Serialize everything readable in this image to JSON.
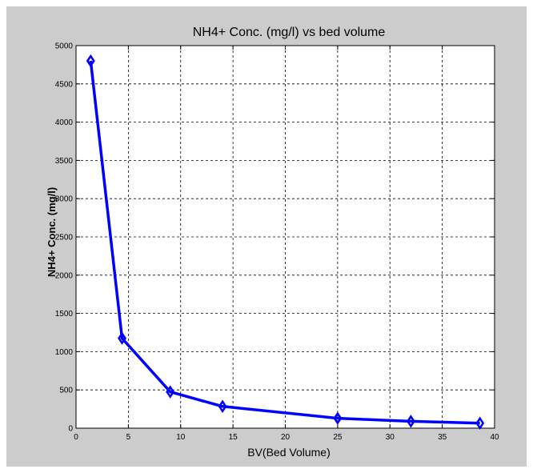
{
  "chart_data": {
    "type": "line",
    "title": "NH4+ Conc. (mg/l) vs bed volume",
    "xlabel": "BV(Bed Volume)",
    "ylabel": "NH4+ Conc. (mg/l)",
    "xlim": [
      0,
      40
    ],
    "ylim": [
      0,
      5000
    ],
    "xticks": [
      "0",
      "5",
      "10",
      "15",
      "20",
      "25",
      "30",
      "35",
      "40"
    ],
    "yticks": [
      "0",
      "500",
      "1000",
      "1500",
      "2000",
      "2500",
      "3000",
      "3500",
      "4000",
      "4500",
      "5000"
    ],
    "grid": true,
    "series": [
      {
        "x": [
          1.4,
          4.4,
          9.0,
          14.0,
          25.0,
          32.0,
          38.6
        ],
        "y": [
          4800,
          1175,
          475,
          285,
          130,
          90,
          65
        ],
        "color": "#0000ff",
        "marker": "diamond"
      }
    ]
  }
}
